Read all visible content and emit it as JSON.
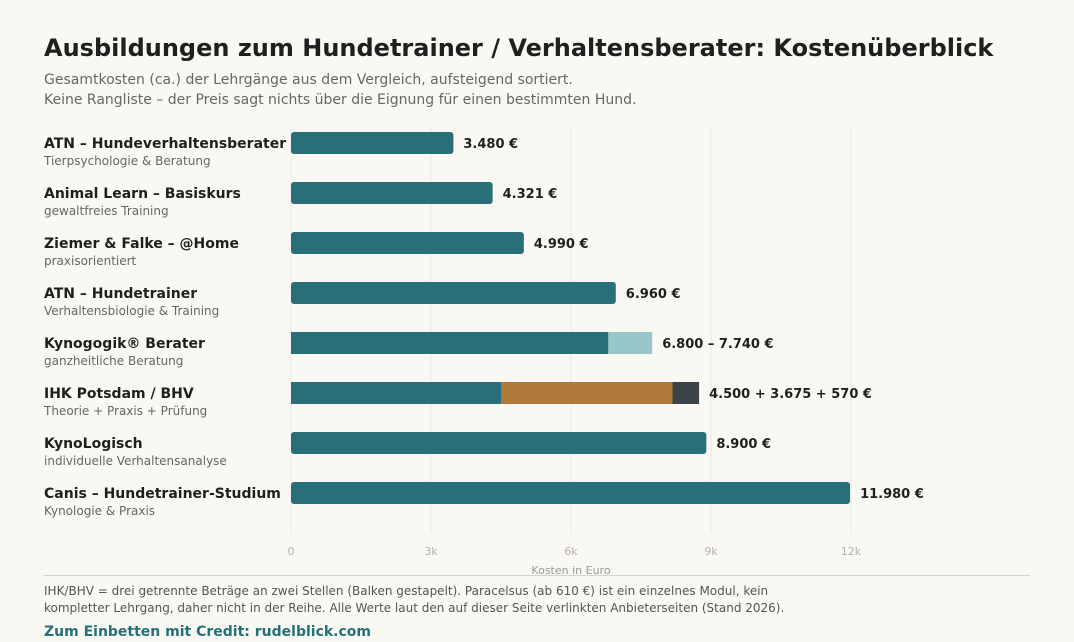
{
  "header": {
    "title": "Ausbildungen zum Hundetrainer / Verhaltensberater: Kostenüberblick",
    "subtitle_1": "Gesamtkosten (ca.) der Lehrgänge aus dem Vergleich, aufsteigend sortiert.",
    "subtitle_2": "Keine Rangliste – der Preis sagt nichts über die Eignung für einen bestimmten Hund."
  },
  "footer": {
    "note_1": "IHK/BHV = drei getrennte Beträge an zwei Stellen (Balken gestapelt). Paracelsus (ab 610 €) ist ein einzelnes Modul, kein",
    "note_2": "kompletter Lehrgang, daher nicht in der Reihe. Alle Werte laut den auf dieser Seite verlinkten Anbieterseiten (Stand 2026).",
    "credit": "Zum Einbetten mit Credit: rudelblick.com"
  },
  "colors": {
    "primary": "#286f78",
    "range": "#99c6cb",
    "ihk_praxis": "#b07b3a",
    "ihk_pruefung": "#3b4248",
    "grid": "#ebe8e1",
    "axis": "#b5b2ab"
  },
  "chart_data": {
    "type": "bar",
    "orientation": "horizontal",
    "xlabel": "Kosten in Euro",
    "xlim": [
      0,
      12000
    ],
    "xticks": [
      0,
      3000,
      6000,
      9000,
      12000
    ],
    "xtick_labels": [
      "0",
      "3k",
      "6k",
      "9k",
      "12k"
    ],
    "grid": true,
    "rows": [
      {
        "label": "ATN – Hundeverhaltensberater",
        "sub": "Tierpsychologie & Beratung",
        "segments": [
          {
            "value": 3480,
            "color": "primary"
          }
        ],
        "value_label": "3.480 €"
      },
      {
        "label": "Animal Learn – Basiskurs",
        "sub": "gewaltfreies Training",
        "segments": [
          {
            "value": 4321,
            "color": "primary"
          }
        ],
        "value_label": "4.321 €"
      },
      {
        "label": "Ziemer & Falke – @Home",
        "sub": "praxisorientiert",
        "segments": [
          {
            "value": 4990,
            "color": "primary"
          }
        ],
        "value_label": "4.990 €"
      },
      {
        "label": "ATN – Hundetrainer",
        "sub": "Verhaltensbiologie & Training",
        "segments": [
          {
            "value": 6960,
            "color": "primary"
          }
        ],
        "value_label": "6.960 €"
      },
      {
        "label": "Kynogogik® Berater",
        "sub": "ganzheitliche Beratung",
        "segments": [
          {
            "value": 6800,
            "color": "primary"
          },
          {
            "value": 940,
            "color": "range"
          }
        ],
        "value_label": "6.800 – 7.740 €"
      },
      {
        "label": "IHK Potsdam / BHV",
        "sub": "Theorie + Praxis + Prüfung",
        "segments": [
          {
            "value": 4500,
            "color": "primary"
          },
          {
            "value": 3675,
            "color": "ihk_praxis"
          },
          {
            "value": 570,
            "color": "ihk_pruefung"
          }
        ],
        "value_label": "4.500 + 3.675 + 570 €"
      },
      {
        "label": "KynoLogisch",
        "sub": "individuelle Verhaltensanalyse",
        "segments": [
          {
            "value": 8900,
            "color": "primary"
          }
        ],
        "value_label": "8.900 €"
      },
      {
        "label": "Canis – Hundetrainer-Studium",
        "sub": "Kynologie & Praxis",
        "segments": [
          {
            "value": 11980,
            "color": "primary"
          }
        ],
        "value_label": "11.980 €"
      }
    ]
  }
}
